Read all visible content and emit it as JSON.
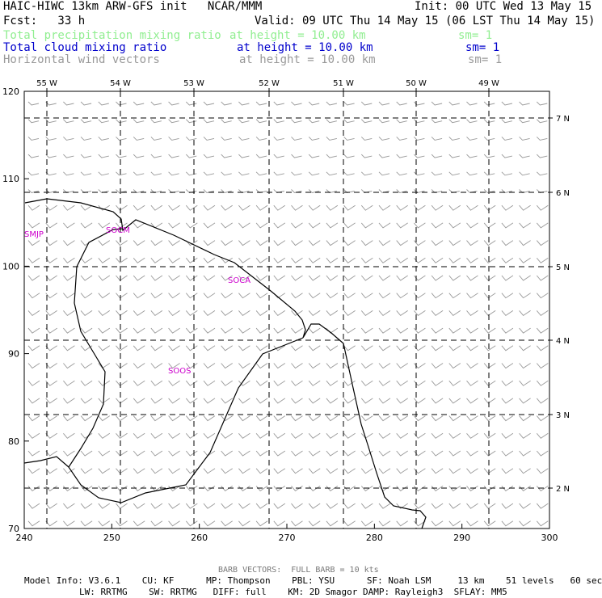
{
  "header": {
    "title_left": "HAIC-HIWC 13km ARW-GFS init   NCAR/MMM",
    "init": "Init: 00 UTC Wed 13 May 15",
    "fcst": "Fcst:   33 h",
    "valid": "Valid: 09 UTC Thu 14 May 15 (06 LST Thu 14 May 15)",
    "fields": [
      {
        "name": "Total precipitation mixing ratio",
        "height": "at height = 10.00 km",
        "sm": "sm= 1",
        "color": "#90ee90"
      },
      {
        "name": "Total cloud mixing ratio",
        "height": "at height = 10.00 km",
        "sm": "sm= 1",
        "color": "#0000cc"
      },
      {
        "name": "Horizontal wind vectors",
        "height": "at height = 10.00 km",
        "sm": "sm= 1",
        "color": "#999999"
      }
    ]
  },
  "map": {
    "x_ticks": [
      "240",
      "250",
      "260",
      "270",
      "280",
      "290",
      "300"
    ],
    "y_ticks": [
      "70",
      "80",
      "90",
      "100",
      "110",
      "120"
    ],
    "lon_labels": [
      "55 W",
      "54 W",
      "53 W",
      "52 W",
      "51 W",
      "50 W",
      "49 W"
    ],
    "lat_labels": [
      "7 N",
      "6 N",
      "5 N",
      "4 N",
      "3 N",
      "2 N"
    ],
    "stations": [
      "SMJP",
      "SOCM",
      "SOCA",
      "SOOS"
    ],
    "barb_color": "#999999",
    "coast_color": "#000000",
    "station_color": "#cc00cc"
  },
  "footer": {
    "barb_note": "BARB VECTORS:  FULL BARB = 10 kts",
    "line1": "Model Info: V3.6.1    CU: KF      MP: Thompson    PBL: YSU      SF: Noah LSM     13 km    51 levels   60 sec",
    "line2": "LW: RRTMG    SW: RRTMG   DIFF: full    KM: 2D Smagor DAMP: Rayleigh3  SFLAY: MM5"
  }
}
